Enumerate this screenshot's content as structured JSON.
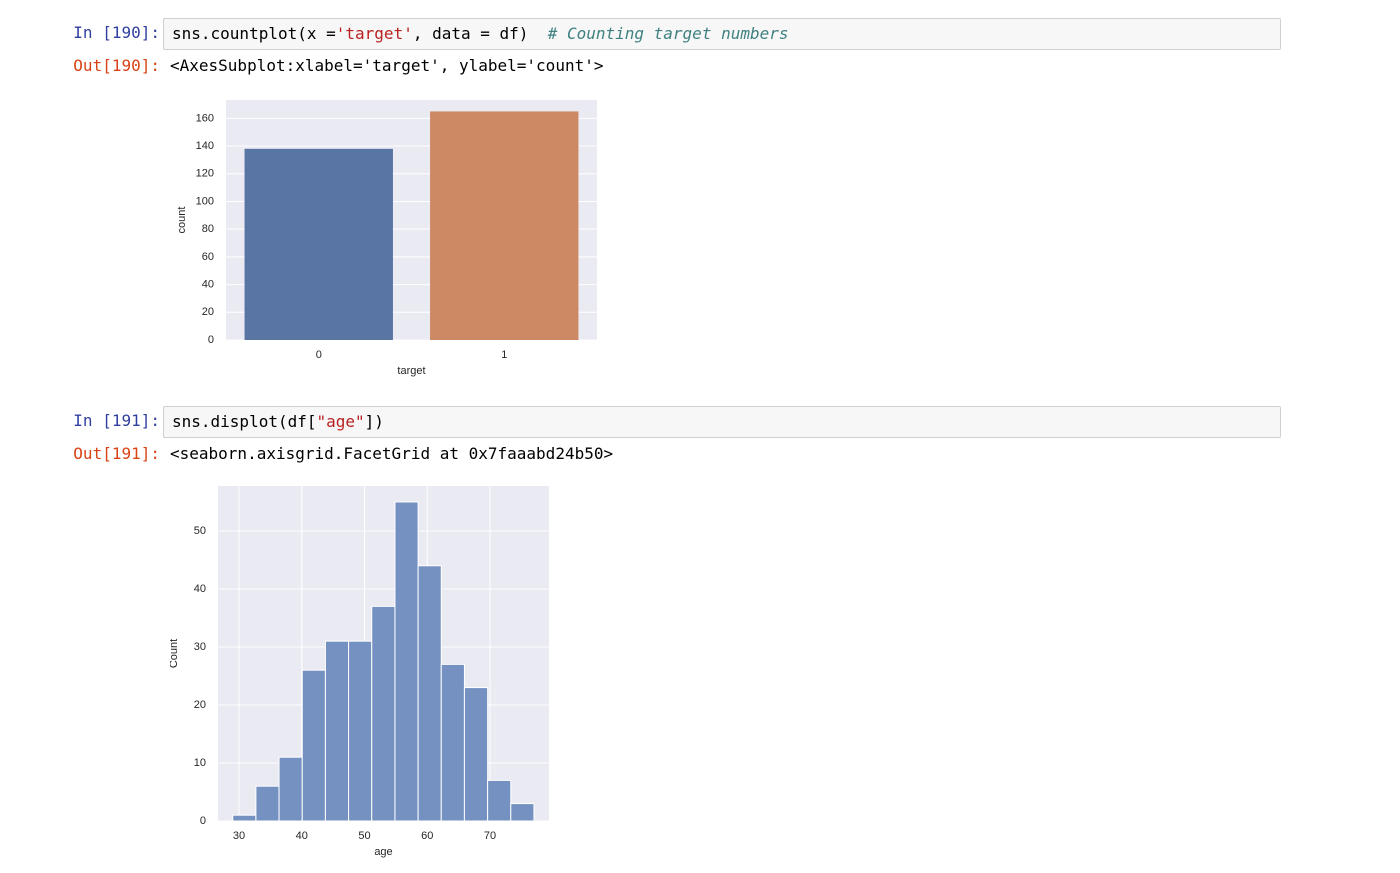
{
  "cells": [
    {
      "in_prompt": "In [190]:",
      "code": [
        "sns.countplot(x =",
        "'target'",
        ", data = df)  ",
        "# Counting target numbers"
      ],
      "out_prompt": "Out[190]:",
      "output": "<AxesSubplot:xlabel='target', ylabel='count'>"
    },
    {
      "in_prompt": "In [191]:",
      "code": [
        "sns.displot(df[",
        "\"age\"",
        "])"
      ],
      "out_prompt": "Out[191]:",
      "output": "<seaborn.axisgrid.FacetGrid at 0x7faaabd24b50>"
    }
  ],
  "chart_data": [
    {
      "type": "bar",
      "categories": [
        "0",
        "1"
      ],
      "values": [
        138,
        165
      ],
      "colors": [
        "#5975a4",
        "#cc8963"
      ],
      "xlabel": "target",
      "ylabel": "count",
      "ylim": [
        0,
        173.25
      ],
      "yticks": [
        0,
        20,
        40,
        60,
        80,
        100,
        120,
        140,
        160
      ],
      "grid": true
    },
    {
      "type": "histogram",
      "bins": [
        29,
        32.69,
        36.38,
        40.08,
        43.77,
        47.46,
        51.15,
        54.85,
        58.54,
        62.23,
        65.92,
        69.62,
        73.31,
        77
      ],
      "values": [
        1,
        6,
        11,
        26,
        31,
        31,
        37,
        55,
        44,
        27,
        23,
        7,
        3
      ],
      "color": "#7591c2",
      "xlabel": "age",
      "ylabel": "Count",
      "xlim": [
        26.65,
        79.4
      ],
      "xticks": [
        30,
        40,
        50,
        60,
        70
      ],
      "ylim": [
        0,
        57.75
      ],
      "yticks": [
        0,
        10,
        20,
        30,
        40,
        50
      ],
      "grid": true
    }
  ]
}
